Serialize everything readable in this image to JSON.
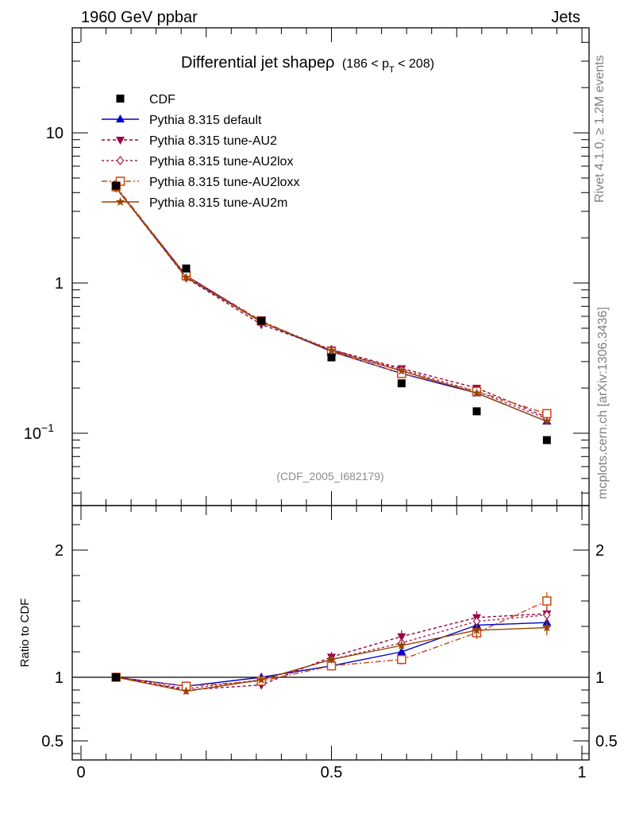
{
  "header": {
    "left": "1960 GeV ppbar",
    "right": "Jets"
  },
  "side_labels": {
    "rivet": "Rivet 4.1.0, ≥ 1.2M events",
    "mcplots": "mcplots.cern.ch [arXiv:1306.3436]"
  },
  "title": {
    "main": "Differential jet shapeρ",
    "sub_prefix": "(186 < p",
    "sub_sub": "T",
    "sub_suffix": " < 208)"
  },
  "analysis_id": "(CDF_2005_I682179)",
  "chart_data": {
    "type": "line",
    "xlim": [
      0,
      1
    ],
    "x_ticks": [
      0,
      0.5,
      1
    ],
    "x_tick_labels": [
      "0",
      "0.5",
      "1"
    ],
    "upper": {
      "yscale": "log",
      "ylim": [
        0.033,
        50
      ],
      "y_tick_labels": [
        {
          "value": 10,
          "label": "10"
        },
        {
          "value": 1,
          "label": "1"
        },
        {
          "value": 0.1,
          "label": "10",
          "sup": "−1"
        }
      ]
    },
    "lower": {
      "ylabel": "Ratio to CDF",
      "ylim": [
        0.35,
        2.35
      ],
      "reference_line": 1,
      "y_tick_labels": [
        {
          "value": 2,
          "label": "2"
        },
        {
          "value": 1,
          "label": "1"
        },
        {
          "value": 0.5,
          "label": "0.5"
        }
      ]
    },
    "x": [
      0.07,
      0.21,
      0.36,
      0.5,
      0.64,
      0.79,
      0.93
    ],
    "data": {
      "name": "CDF",
      "color": "#000000",
      "values": [
        4.45,
        1.25,
        0.56,
        0.32,
        0.215,
        0.14,
        0.09
      ]
    },
    "series": [
      {
        "name": "Pythia 8.315 default",
        "color": "#0000cc",
        "marker": "triangle-up",
        "dash": "solid",
        "values": [
          4.3,
          1.12,
          0.55,
          0.35,
          0.25,
          0.185,
          0.12
        ],
        "ratio": [
          1.0,
          0.93,
          1.0,
          1.09,
          1.2,
          1.41,
          1.43
        ],
        "ratio_err": [
          0.01,
          0.02,
          0.02,
          0.03,
          0.04,
          0.05,
          0.06
        ]
      },
      {
        "name": "Pythia 8.315 tune-AU2",
        "color": "#990044",
        "marker": "triangle-down",
        "dash": "4,3",
        "values": [
          4.3,
          1.08,
          0.53,
          0.36,
          0.27,
          0.2,
          0.128
        ],
        "ratio": [
          1.0,
          0.9,
          0.94,
          1.16,
          1.32,
          1.47,
          1.5
        ],
        "ratio_err": [
          0.01,
          0.02,
          0.03,
          0.04,
          0.05,
          0.05,
          0.07
        ]
      },
      {
        "name": "Pythia 8.315 tune-AU2lox",
        "color": "#aa2255",
        "marker": "diamond-open",
        "dash": "3,3",
        "values": [
          4.3,
          1.1,
          0.55,
          0.36,
          0.265,
          0.19,
          0.125
        ],
        "ratio": [
          1.0,
          0.91,
          0.98,
          1.14,
          1.27,
          1.44,
          1.49
        ],
        "ratio_err": [
          0.01,
          0.02,
          0.02,
          0.03,
          0.04,
          0.05,
          0.06
        ]
      },
      {
        "name": "Pythia 8.315 tune-AU2loxx",
        "color": "#cc4411",
        "marker": "square-open",
        "dash": "7,3,2,3",
        "values": [
          4.4,
          1.12,
          0.56,
          0.35,
          0.25,
          0.19,
          0.135
        ],
        "ratio": [
          1.0,
          0.93,
          0.97,
          1.09,
          1.14,
          1.35,
          1.6
        ],
        "ratio_err": [
          0.01,
          0.02,
          0.03,
          0.03,
          0.04,
          0.05,
          0.07
        ]
      },
      {
        "name": "Pythia 8.315 tune-AU2m",
        "color": "#994400",
        "marker": "star",
        "dash": "solid",
        "values": [
          4.3,
          1.09,
          0.55,
          0.355,
          0.26,
          0.185,
          0.12
        ],
        "ratio": [
          1.0,
          0.89,
          0.98,
          1.14,
          1.25,
          1.37,
          1.39
        ],
        "ratio_err": [
          0.01,
          0.02,
          0.02,
          0.03,
          0.04,
          0.05,
          0.06
        ]
      }
    ]
  }
}
